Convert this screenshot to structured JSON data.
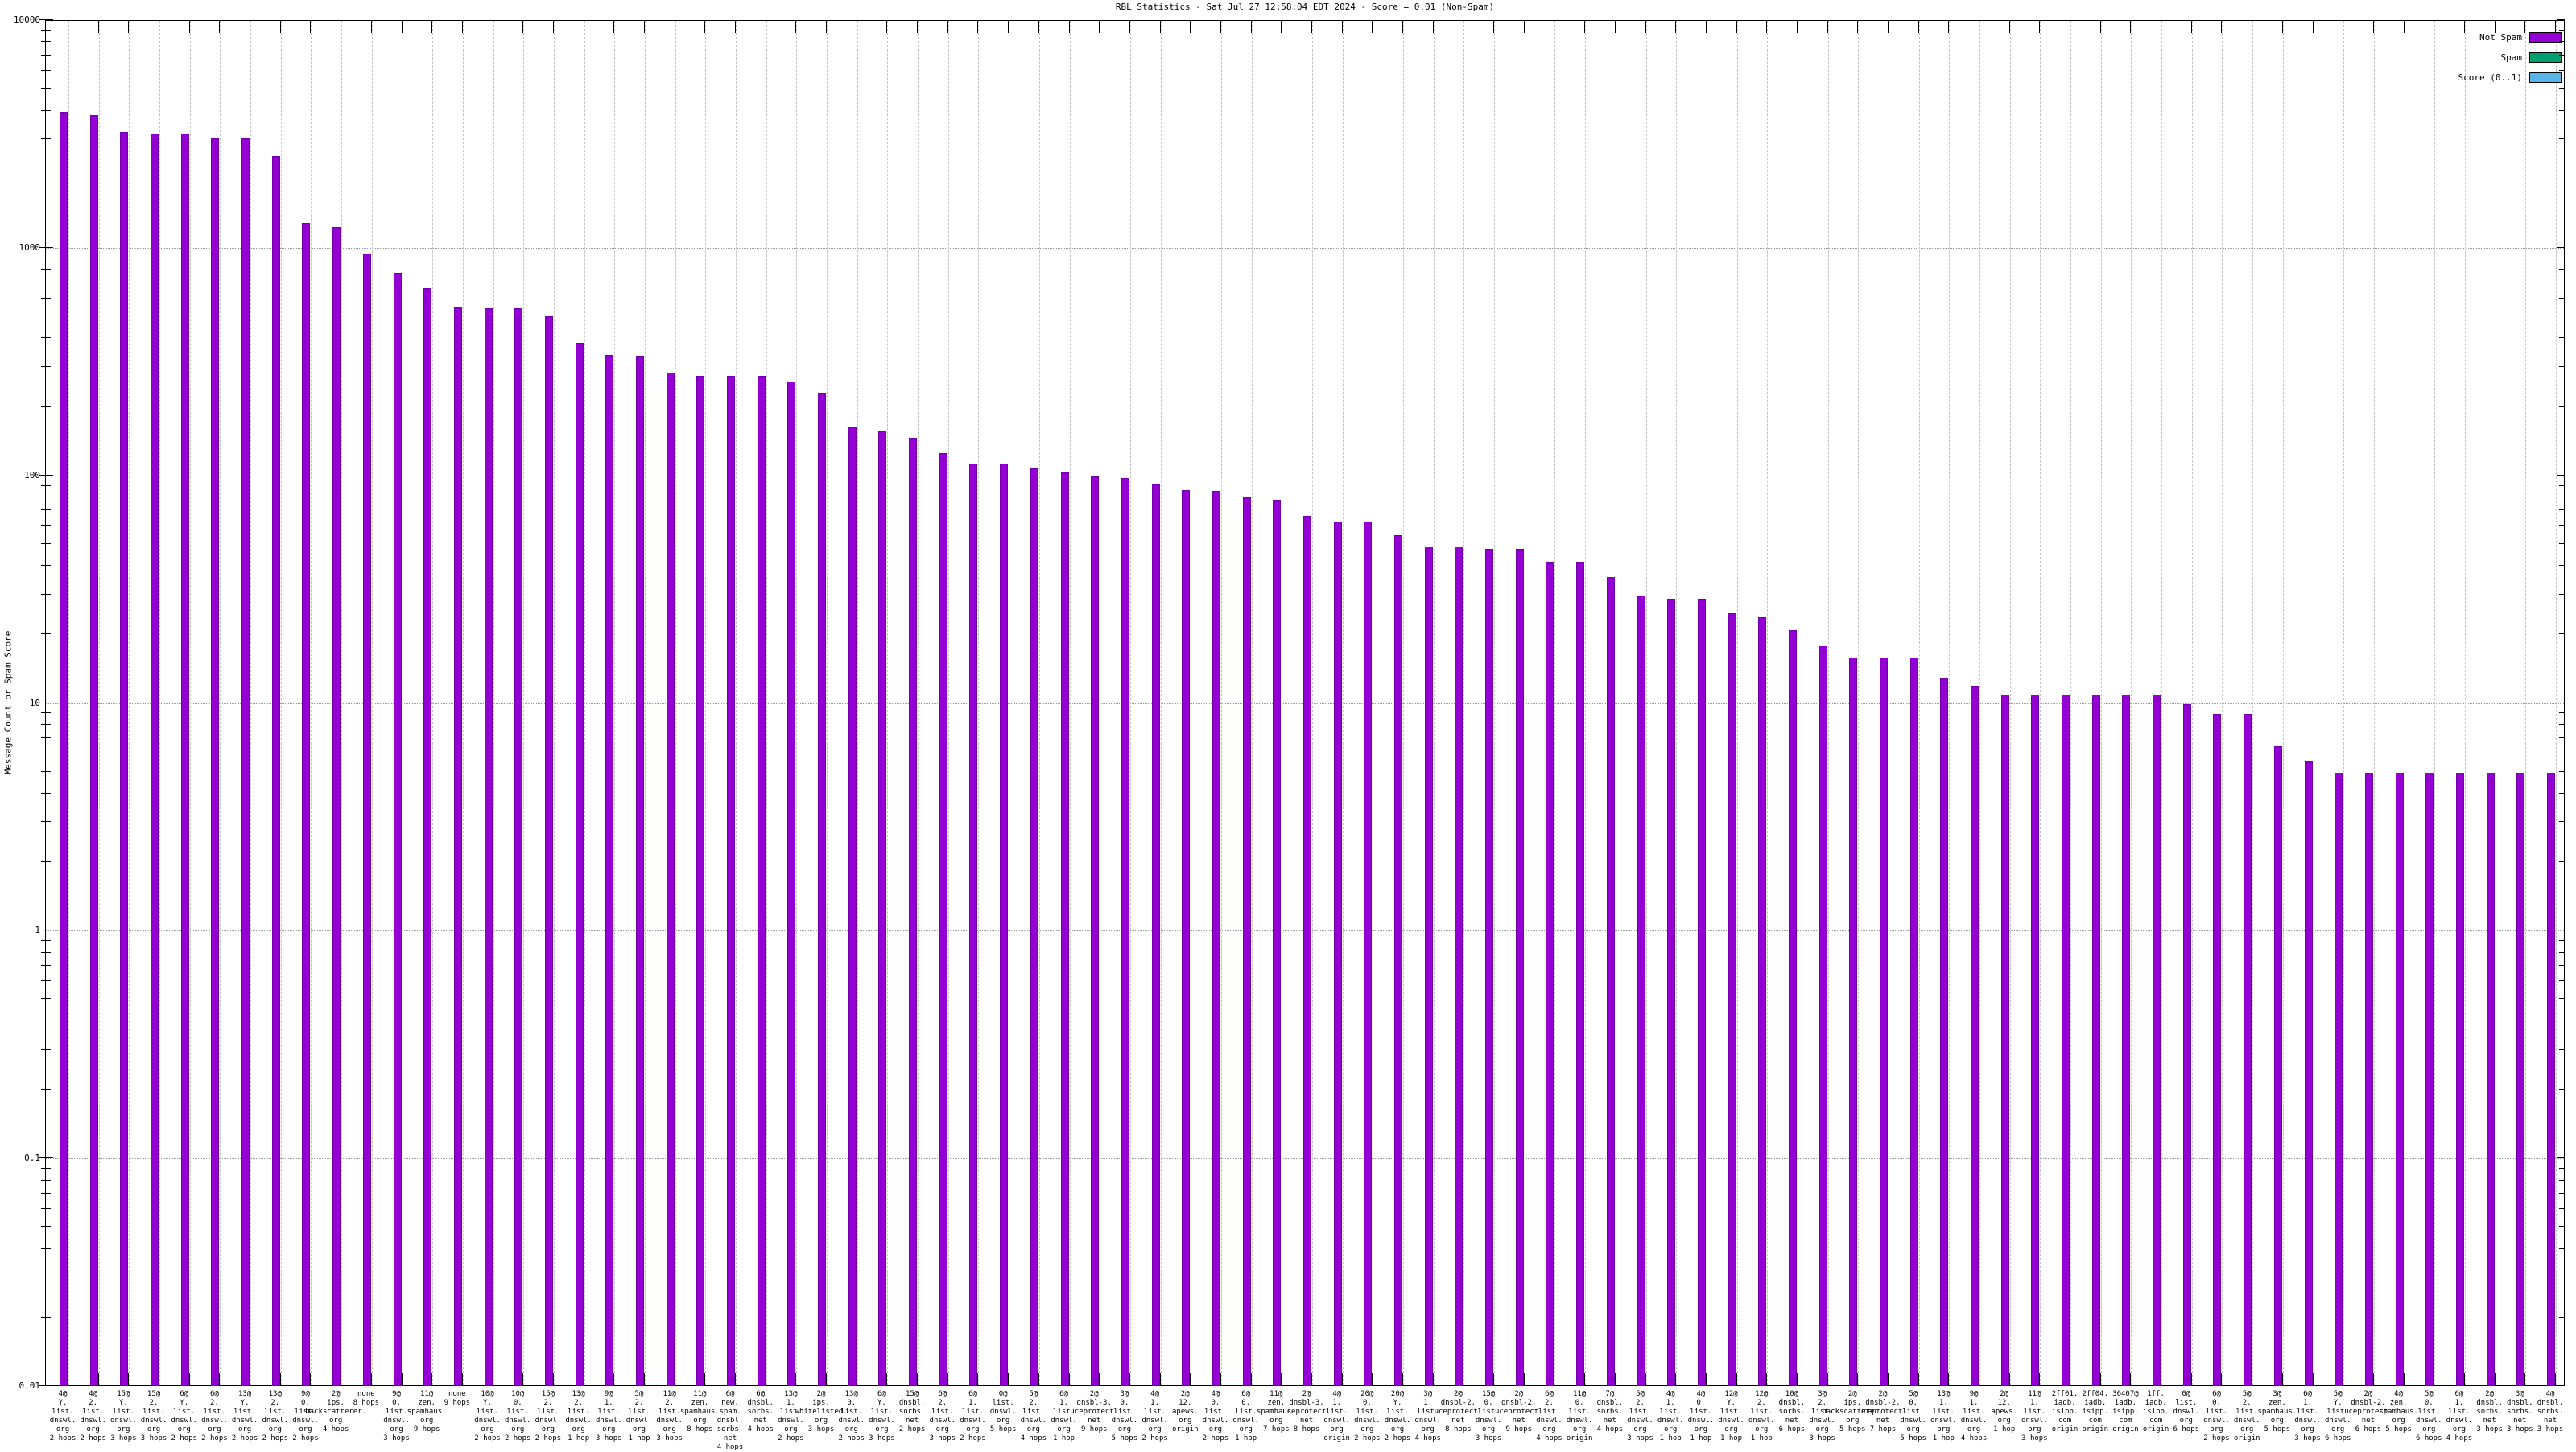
{
  "title": "RBL Statistics - Sat Jul 27 12:58:04 EDT 2024 - Score = 0.01 (Non-Spam)",
  "y_axis": {
    "label": "Message Count or Spam Score",
    "ticks": [
      "10000",
      "1000",
      "100",
      "10",
      "1",
      "0.1",
      "0.01"
    ]
  },
  "legend": [
    {
      "label": "Not Spam",
      "color": "#9400d3"
    },
    {
      "label": "Spam",
      "color": "#009e73"
    },
    {
      "label": "Score (0..1)",
      "color": "#56b4e9"
    }
  ],
  "chart_data": {
    "type": "bar",
    "title": "RBL Statistics - Sat Jul 27 12:58:04 EDT 2024 - Score = 0.01 (Non-Spam)",
    "xlabel": "",
    "ylabel": "Message Count or Spam Score",
    "y_scale": "log",
    "ylim": [
      0.01,
      10000
    ],
    "grid": true,
    "legend_position": "top-right-inside",
    "series_shown": "Not Spam",
    "bar_color": "#9400d3",
    "categories": [
      "4@\nY.\nlist.\ndnswl.\norg\n2 hops",
      "4@\n2.\nlist.\ndnswl.\norg\n2 hops",
      "15@\nY.\nlist.\ndnswl.\norg\n3 hops",
      "15@\n2.\nlist.\ndnswl.\norg\n3 hops",
      "6@\nY.\nlist.\ndnswl.\norg\n2 hops",
      "6@\n2.\nlist.\ndnswl.\norg\n2 hops",
      "13@\nY.\nlist.\ndnswl.\norg\n2 hops",
      "13@\n2.\nlist.\ndnswl.\norg\n2 hops",
      "9@\n0.\nlist.\ndnswl.\norg\n2 hops",
      "2@\nips.\nbackscatterer.\norg\n4 hops",
      "none\n8 hops",
      "9@\n0.\nlist.\ndnswl.\norg\n3 hops",
      "11@\nzen.\nspamhaus.\norg\n9 hops",
      "none\n9 hops",
      "10@\nY.\nlist.\ndnswl.\norg\n2 hops",
      "10@\n0.\nlist.\ndnswl.\norg\n2 hops",
      "15@\n2.\nlist.\ndnswl.\norg\n2 hops",
      "13@\n2.\nlist.\ndnswl.\norg\n1 hop",
      "9@\n1.\nlist.\ndnswl.\norg\n3 hops",
      "5@\n2.\nlist.\ndnswl.\norg\n1 hop",
      "11@\n2.\nlist.\ndnswl.\norg\n3 hops",
      "11@\nzen.\nspamhaus.\norg\n8 hops",
      "6@\nnew.\nspam.\ndnsbl.\nsorbs.\nnet\n4 hops",
      "6@\ndnsbl.\nsorbs.\nnet\n4 hops",
      "13@\n1.\nlist.\ndnswl.\norg\n2 hops",
      "2@\nips.\nwhitelisted.\norg\n3 hops",
      "13@\n0.\nlist.\ndnswl.\norg\n2 hops",
      "6@\nY.\nlist.\ndnswl.\norg\n3 hops",
      "15@\ndnsbl.\nsorbs.\nnet\n2 hops",
      "6@\n2.\nlist.\ndnswl.\norg\n3 hops",
      "6@\n1.\nlist.\ndnswl.\norg\n2 hops",
      "0@\nlist.\ndnswl.\norg\n5 hops",
      "5@\n2.\nlist.\ndnswl.\norg\n4 hops",
      "6@\n1.\nlist.\ndnswl.\norg\n1 hop",
      "2@\ndnsbl-3.\nuceprotect.\nnet\n9 hops",
      "3@\n0.\nlist.\ndnswl.\norg\n5 hops",
      "4@\n1.\nlist.\ndnswl.\norg\n2 hops",
      "2@\n12.\napews.\norg\norigin",
      "4@\n0.\nlist.\ndnswl.\norg\n2 hops",
      "6@\n0.\nlist.\ndnswl.\norg\n1 hop",
      "11@\nzen.\nspamhaus.\norg\n7 hops",
      "2@\ndnsbl-3.\nuceprotect.\nnet\n8 hops",
      "4@\n1.\nlist.\ndnswl.\norg\norigin",
      "20@\n0.\nlist.\ndnswl.\norg\n2 hops",
      "20@\nY.\nlist.\ndnswl.\norg\n2 hops",
      "3@\n1.\nlist.\ndnswl.\norg\n4 hops",
      "2@\ndnsbl-2.\nuceprotect.\nnet\n8 hops",
      "15@\n0.\nlist.\ndnswl.\norg\n3 hops",
      "2@\ndnsbl-2.\nuceprotect.\nnet\n9 hops",
      "6@\n2.\nlist.\ndnswl.\norg\n4 hops",
      "11@\n0.\nlist.\ndnswl.\norg\norigin",
      "7@\ndnsbl.\nsorbs.\nnet\n4 hops",
      "5@\n2.\nlist.\ndnswl.\norg\n3 hops",
      "4@\n1.\nlist.\ndnswl.\norg\n1 hop",
      "4@\n0.\nlist.\ndnswl.\norg\n1 hop",
      "12@\nY.\nlist.\ndnswl.\norg\n1 hop",
      "12@\n2.\nlist.\ndnswl.\norg\n1 hop",
      "10@\ndnsbl.\nsorbs.\nnet\n6 hops",
      "3@\n2.\nlist.\ndnswl.\norg\n3 hops",
      "2@\nips.\nbackscatterer.\norg\n5 hops",
      "2@\ndnsbl-2.\nuceprotect.\nnet\n7 hops",
      "5@\n0.\nlist.\ndnswl.\norg\n5 hops",
      "13@\n1.\nlist.\ndnswl.\norg\n1 hop",
      "9@\n1.\nlist.\ndnswl.\norg\n4 hops",
      "2@\n12.\napews.\norg\n1 hop",
      "11@\n1.\nlist.\ndnswl.\norg\n3 hops",
      "2ff01.\niadb.\nisipp.\ncom\norigin",
      "2ff04.\niadb.\nisipp.\ncom\norigin",
      "36407@\niadb.\nisipp.\ncom\norigin",
      "1ff.\niadb.\nisipp.\ncom\norigin",
      "0@\nlist.\ndnswl.\norg\n6 hops",
      "6@\n0.\nlist.\ndnswl.\norg\n2 hops",
      "5@\n2.\nlist.\ndnswl.\norg\norigin",
      "3@\nzen.\nspamhaus.\norg\n5 hops",
      "6@\n1.\nlist.\ndnswl.\norg\n3 hops",
      "5@\nY.\nlist.\ndnswl.\norg\n6 hops",
      "2@\ndnsbl-2.\nuceprotect.\nnet\n6 hops",
      "4@\nzen.\nspamhaus.\norg\n5 hops",
      "5@\n0.\nlist.\ndnswl.\norg\n6 hops",
      "6@\n1.\nlist.\ndnswl.\norg\n4 hops",
      "2@\ndnsbl.\nsorbs.\nnet\n3 hops",
      "3@\ndnsbl.\nsorbs.\nnet\n3 hops",
      "4@\ndnsbl.\nsorbs.\nnet\n3 hops"
    ],
    "values": [
      4000,
      3870,
      3250,
      3200,
      3200,
      3050,
      3050,
      2550,
      1300,
      1240,
      950,
      780,
      670,
      550,
      548,
      548,
      505,
      385,
      340,
      337,
      286,
      276,
      276,
      275,
      261,
      233,
      164,
      157,
      148,
      126,
      114,
      114,
      108,
      104,
      100,
      98,
      93,
      87,
      86,
      81,
      79,
      67,
      63,
      63,
      55,
      49,
      49,
      48,
      48,
      42,
      42,
      36,
      30,
      29,
      29,
      25,
      24,
      21,
      18,
      16,
      16,
      16,
      13,
      12,
      11,
      11,
      11,
      11,
      11,
      11,
      10,
      9,
      9,
      6.5,
      5.6,
      5,
      5,
      5,
      5,
      5,
      5,
      5,
      5
    ]
  }
}
